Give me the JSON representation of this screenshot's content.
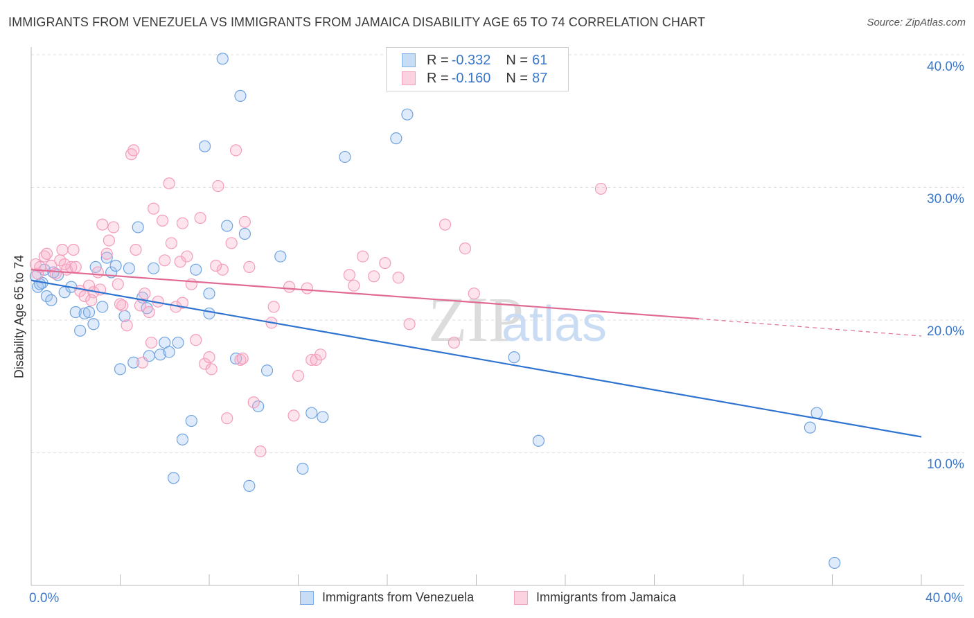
{
  "chart_data": {
    "type": "scatter",
    "title": "IMMIGRANTS FROM VENEZUELA VS IMMIGRANTS FROM JAMAICA DISABILITY AGE 65 TO 74 CORRELATION CHART",
    "source": "Source: ZipAtlas.com",
    "watermark": "ZIPatlas",
    "ylabel": "Disability Age 65 to 74",
    "xlabel": "",
    "xlim": [
      0,
      40
    ],
    "ylim": [
      0,
      40
    ],
    "x_tick_labels": [
      "0.0%",
      "40.0%"
    ],
    "y_tick_labels": [
      "10.0%",
      "20.0%",
      "30.0%",
      "40.0%"
    ],
    "y_ticks": [
      10,
      20,
      30,
      40
    ],
    "grid": "horizontal dashed",
    "legend": {
      "placement": "top-center",
      "rows": [
        {
          "r_label": "R =",
          "r_value": "-0.332",
          "n_label": "N =",
          "n_value": "61",
          "color": "#7fb0e8"
        },
        {
          "r_label": "R =",
          "r_value": "-0.160",
          "n_label": "N =",
          "n_value": "87",
          "color": "#f4a3bf"
        }
      ]
    },
    "series": [
      {
        "name": "Immigrants from Venezuela",
        "color": "#6fa3e0",
        "line_color": "#2f73d0",
        "trend": {
          "x0": 0.0,
          "y0": 23.0,
          "x1": 40.0,
          "y1": 11.2
        },
        "points": [
          [
            0.2,
            23.3
          ],
          [
            0.3,
            22.5
          ],
          [
            0.5,
            22.8
          ],
          [
            0.7,
            21.8
          ],
          [
            0.9,
            21.5
          ],
          [
            1.2,
            23.4
          ],
          [
            1.5,
            22.1
          ],
          [
            1.8,
            22.5
          ],
          [
            2.0,
            20.6
          ],
          [
            2.2,
            19.2
          ],
          [
            2.4,
            20.5
          ],
          [
            2.6,
            20.6
          ],
          [
            2.8,
            19.7
          ],
          [
            2.9,
            24.0
          ],
          [
            3.2,
            21.0
          ],
          [
            3.4,
            24.7
          ],
          [
            3.6,
            23.6
          ],
          [
            3.8,
            24.1
          ],
          [
            4.0,
            16.3
          ],
          [
            4.2,
            20.3
          ],
          [
            4.4,
            23.9
          ],
          [
            4.6,
            16.8
          ],
          [
            4.8,
            27.0
          ],
          [
            5.0,
            21.7
          ],
          [
            5.2,
            20.9
          ],
          [
            5.3,
            17.3
          ],
          [
            5.5,
            23.9
          ],
          [
            5.8,
            17.4
          ],
          [
            6.0,
            18.3
          ],
          [
            6.2,
            17.6
          ],
          [
            6.4,
            8.1
          ],
          [
            6.6,
            18.3
          ],
          [
            6.8,
            11.0
          ],
          [
            7.2,
            12.4
          ],
          [
            7.4,
            23.8
          ],
          [
            7.8,
            33.1
          ],
          [
            8.0,
            22.0
          ],
          [
            8.0,
            20.5
          ],
          [
            8.6,
            39.7
          ],
          [
            8.8,
            27.1
          ],
          [
            9.2,
            17.1
          ],
          [
            9.4,
            36.9
          ],
          [
            9.6,
            26.5
          ],
          [
            9.8,
            7.5
          ],
          [
            10.2,
            13.5
          ],
          [
            10.6,
            16.2
          ],
          [
            11.2,
            24.8
          ],
          [
            12.2,
            8.8
          ],
          [
            12.6,
            13.0
          ],
          [
            13.1,
            12.7
          ],
          [
            14.1,
            32.3
          ],
          [
            16.4,
            33.7
          ],
          [
            16.9,
            35.5
          ],
          [
            21.7,
            17.2
          ],
          [
            22.8,
            10.9
          ],
          [
            35.0,
            11.9
          ],
          [
            35.3,
            13.0
          ],
          [
            36.1,
            1.7
          ],
          [
            0.4,
            22.7
          ],
          [
            0.6,
            23.8
          ],
          [
            1.0,
            23.6
          ]
        ]
      },
      {
        "name": "Immigrants from Jamaica",
        "color": "#f49cbc",
        "line_color": "#e06a93",
        "trend": {
          "x0": 0.0,
          "y0": 23.8,
          "x1": 30.0,
          "y1": 20.1
        },
        "trend_dashed_to": {
          "x": 40.0,
          "y": 18.8
        },
        "points": [
          [
            0.2,
            24.2
          ],
          [
            0.3,
            23.5
          ],
          [
            0.4,
            24.0
          ],
          [
            0.6,
            24.8
          ],
          [
            0.7,
            25.0
          ],
          [
            0.9,
            24.1
          ],
          [
            1.1,
            23.5
          ],
          [
            1.3,
            24.5
          ],
          [
            1.4,
            25.3
          ],
          [
            1.6,
            23.8
          ],
          [
            1.8,
            24.0
          ],
          [
            1.9,
            25.3
          ],
          [
            2.2,
            22.2
          ],
          [
            2.4,
            21.8
          ],
          [
            2.6,
            22.6
          ],
          [
            2.8,
            22.1
          ],
          [
            3.0,
            23.6
          ],
          [
            3.2,
            27.2
          ],
          [
            3.4,
            25.0
          ],
          [
            3.5,
            26.0
          ],
          [
            3.7,
            27.0
          ],
          [
            3.9,
            22.7
          ],
          [
            4.1,
            21.1
          ],
          [
            4.3,
            19.6
          ],
          [
            4.5,
            32.5
          ],
          [
            4.6,
            32.8
          ],
          [
            4.7,
            25.3
          ],
          [
            4.9,
            21.1
          ],
          [
            5.1,
            22.0
          ],
          [
            5.3,
            20.6
          ],
          [
            5.4,
            18.3
          ],
          [
            5.5,
            28.4
          ],
          [
            5.7,
            21.4
          ],
          [
            5.9,
            27.5
          ],
          [
            6.0,
            24.5
          ],
          [
            6.2,
            30.3
          ],
          [
            6.3,
            25.8
          ],
          [
            6.5,
            21.0
          ],
          [
            6.7,
            24.4
          ],
          [
            6.8,
            27.3
          ],
          [
            7.0,
            24.8
          ],
          [
            7.2,
            22.7
          ],
          [
            7.4,
            18.5
          ],
          [
            7.6,
            27.7
          ],
          [
            7.8,
            16.7
          ],
          [
            8.0,
            17.2
          ],
          [
            8.1,
            16.3
          ],
          [
            8.4,
            30.1
          ],
          [
            8.6,
            23.8
          ],
          [
            8.8,
            12.6
          ],
          [
            9.0,
            25.8
          ],
          [
            9.2,
            32.8
          ],
          [
            9.4,
            17.0
          ],
          [
            9.6,
            27.4
          ],
          [
            9.8,
            24.0
          ],
          [
            10.0,
            13.8
          ],
          [
            10.3,
            10.1
          ],
          [
            10.8,
            19.8
          ],
          [
            10.9,
            21.0
          ],
          [
            11.6,
            22.5
          ],
          [
            11.8,
            12.8
          ],
          [
            12.0,
            15.8
          ],
          [
            12.6,
            17.0
          ],
          [
            12.8,
            17.0
          ],
          [
            13.0,
            17.4
          ],
          [
            14.3,
            23.4
          ],
          [
            14.5,
            22.6
          ],
          [
            14.9,
            24.8
          ],
          [
            15.4,
            23.3
          ],
          [
            15.9,
            24.3
          ],
          [
            16.5,
            23.2
          ],
          [
            17.0,
            19.7
          ],
          [
            18.6,
            27.2
          ],
          [
            19.0,
            18.3
          ],
          [
            19.5,
            25.4
          ],
          [
            19.9,
            22.0
          ],
          [
            25.6,
            29.9
          ],
          [
            2.0,
            24.0
          ],
          [
            3.1,
            22.3
          ],
          [
            4.0,
            21.2
          ],
          [
            6.8,
            21.3
          ],
          [
            8.3,
            24.1
          ],
          [
            1.5,
            24.2
          ],
          [
            2.7,
            21.5
          ],
          [
            5.0,
            16.8
          ],
          [
            9.5,
            17.1
          ],
          [
            12.4,
            22.4
          ]
        ]
      }
    ]
  }
}
